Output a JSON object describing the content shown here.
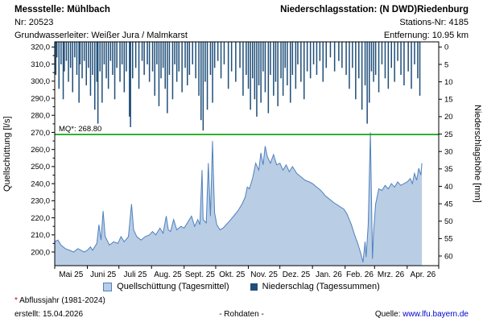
{
  "header": {
    "left": {
      "title": "Messstelle: Mühlbach",
      "nr": "Nr: 20523",
      "aquifer": "Grundwasserleiter: Weißer Jura / Malmkarst"
    },
    "right": {
      "title": "Niederschlagsstation: (N DWD)Riedenburg",
      "station_nr": "Stations-Nr: 4185",
      "distance": "Entfernung: 10.95 km"
    }
  },
  "legend": {
    "discharge": "Quellschüttung (Tagesmittel)",
    "precip": "Niederschlag (Tagessummen)"
  },
  "footer": {
    "star": "*",
    "star_color": "#CC0000",
    "note": " Abflussjahr (1981-2024)",
    "created": "erstellt:  15.04.2026",
    "center": "- Rohdaten -",
    "source_label": "Quelle: ",
    "source_link": "www.lfu.bayern.de",
    "link_color": "#0000CC"
  },
  "chart_data": {
    "type": "combo",
    "x_domain_days": 365,
    "x_month_start_days": [
      0,
      31,
      61,
      92,
      123,
      153,
      184,
      214,
      245,
      276,
      304,
      335
    ],
    "x_categories": [
      "Mai 25",
      "Juni 25",
      "Juli 25",
      "Aug. 25",
      "Sept. 25",
      "Okt. 25",
      "Nov. 25",
      "Dez. 25",
      "Jan. 26",
      "Feb. 26",
      "Mrz. 26",
      "Apr. 26"
    ],
    "left_axis": {
      "label": "Quellschüttung [l/s]",
      "min": 192,
      "max": 323,
      "ticks": [
        200,
        210,
        220,
        230,
        240,
        250,
        260,
        270,
        280,
        290,
        300,
        310,
        320
      ],
      "tick_labels": [
        "200,0",
        "210,0",
        "220,0",
        "230,0",
        "240,0",
        "250,0",
        "260,0",
        "270,0",
        "280,0",
        "290,0",
        "300,0",
        "310,0",
        "320,0"
      ]
    },
    "right_axis": {
      "label": "Niederschlagshöhe [mm]",
      "min": 0,
      "max": 60,
      "inverted": true,
      "ticks": [
        0,
        5,
        10,
        15,
        20,
        25,
        30,
        35,
        40,
        45,
        50,
        55,
        60
      ],
      "tick_labels": [
        "0",
        "5",
        "10",
        "15",
        "20",
        "25",
        "30",
        "35",
        "40",
        "45",
        "50",
        "55",
        "60"
      ]
    },
    "reference_line": {
      "label": "MQ*: 268.80",
      "value": 268.8
    },
    "colors": {
      "area_fill": "#B9CDE5",
      "area_stroke": "#4F81BD",
      "bar": "#1F4E79",
      "mq": "#00A000",
      "frame": "#000000"
    },
    "series": [
      {
        "name": "Quellschüttung (Tagesmittel)",
        "type": "area",
        "axis": "left",
        "unit": "l/s",
        "points": [
          [
            0,
            206
          ],
          [
            3,
            207
          ],
          [
            6,
            204
          ],
          [
            10,
            202
          ],
          [
            14,
            201
          ],
          [
            18,
            200
          ],
          [
            22,
            202
          ],
          [
            25,
            201
          ],
          [
            28,
            200
          ],
          [
            31,
            201
          ],
          [
            34,
            203
          ],
          [
            36,
            201
          ],
          [
            40,
            205
          ],
          [
            42,
            216
          ],
          [
            44,
            207
          ],
          [
            46,
            224
          ],
          [
            48,
            209
          ],
          [
            52,
            204
          ],
          [
            56,
            206
          ],
          [
            60,
            205
          ],
          [
            63,
            209
          ],
          [
            66,
            206
          ],
          [
            70,
            209
          ],
          [
            73,
            228
          ],
          [
            75,
            213
          ],
          [
            78,
            209
          ],
          [
            82,
            207
          ],
          [
            86,
            209
          ],
          [
            90,
            210
          ],
          [
            93,
            212
          ],
          [
            96,
            210
          ],
          [
            100,
            214
          ],
          [
            103,
            211
          ],
          [
            106,
            221
          ],
          [
            108,
            213
          ],
          [
            110,
            212
          ],
          [
            113,
            219
          ],
          [
            116,
            213
          ],
          [
            120,
            215
          ],
          [
            123,
            214
          ],
          [
            126,
            217
          ],
          [
            130,
            221
          ],
          [
            133,
            215
          ],
          [
            136,
            219
          ],
          [
            138,
            216
          ],
          [
            140,
            248
          ],
          [
            141,
            219
          ],
          [
            144,
            217
          ],
          [
            146,
            252
          ],
          [
            148,
            221
          ],
          [
            150,
            265
          ],
          [
            151,
            242
          ],
          [
            152,
            223
          ],
          [
            154,
            216
          ],
          [
            157,
            213
          ],
          [
            160,
            214
          ],
          [
            163,
            216
          ],
          [
            166,
            218
          ],
          [
            170,
            221
          ],
          [
            174,
            224
          ],
          [
            178,
            228
          ],
          [
            181,
            232
          ],
          [
            183,
            238
          ],
          [
            185,
            237
          ],
          [
            188,
            243
          ],
          [
            191,
            252
          ],
          [
            194,
            248
          ],
          [
            196,
            258
          ],
          [
            198,
            251
          ],
          [
            200,
            262
          ],
          [
            202,
            256
          ],
          [
            205,
            252
          ],
          [
            208,
            257
          ],
          [
            211,
            251
          ],
          [
            214,
            252
          ],
          [
            217,
            248
          ],
          [
            220,
            251
          ],
          [
            223,
            247
          ],
          [
            226,
            250
          ],
          [
            230,
            246
          ],
          [
            234,
            244
          ],
          [
            238,
            242
          ],
          [
            242,
            241
          ],
          [
            245,
            240
          ],
          [
            249,
            238
          ],
          [
            253,
            236
          ],
          [
            257,
            233
          ],
          [
            261,
            231
          ],
          [
            265,
            229
          ],
          [
            270,
            227
          ],
          [
            275,
            225
          ],
          [
            278,
            222
          ],
          [
            282,
            216
          ],
          [
            285,
            210
          ],
          [
            288,
            205
          ],
          [
            291,
            199
          ],
          [
            293,
            194
          ],
          [
            295,
            206
          ],
          [
            296,
            197
          ],
          [
            298,
            216
          ],
          [
            300,
            270
          ],
          [
            301,
            233
          ],
          [
            302,
            196
          ],
          [
            303,
            211
          ],
          [
            305,
            228
          ],
          [
            308,
            237
          ],
          [
            311,
            236
          ],
          [
            314,
            239
          ],
          [
            317,
            237
          ],
          [
            320,
            240
          ],
          [
            323,
            238
          ],
          [
            326,
            241
          ],
          [
            329,
            239
          ],
          [
            332,
            240
          ],
          [
            335,
            241
          ],
          [
            338,
            243
          ],
          [
            340,
            240
          ],
          [
            342,
            246
          ],
          [
            344,
            242
          ],
          [
            346,
            249
          ],
          [
            348,
            245
          ],
          [
            349,
            252
          ]
        ]
      },
      {
        "name": "Niederschlag (Tagessummen)",
        "type": "bar",
        "axis": "right",
        "unit": "mm",
        "points": [
          [
            1,
            8
          ],
          [
            2,
            3
          ],
          [
            4,
            12
          ],
          [
            6,
            5
          ],
          [
            8,
            15
          ],
          [
            9,
            7
          ],
          [
            11,
            4
          ],
          [
            13,
            10
          ],
          [
            15,
            6
          ],
          [
            17,
            13
          ],
          [
            19,
            3
          ],
          [
            21,
            8
          ],
          [
            23,
            16
          ],
          [
            24,
            5
          ],
          [
            26,
            9
          ],
          [
            28,
            4
          ],
          [
            30,
            11
          ],
          [
            32,
            6
          ],
          [
            34,
            14
          ],
          [
            36,
            8
          ],
          [
            38,
            18
          ],
          [
            40,
            10
          ],
          [
            41,
            22
          ],
          [
            43,
            7
          ],
          [
            45,
            16
          ],
          [
            47,
            5
          ],
          [
            49,
            9
          ],
          [
            51,
            12
          ],
          [
            53,
            4
          ],
          [
            55,
            8
          ],
          [
            57,
            15
          ],
          [
            59,
            6
          ],
          [
            62,
            10
          ],
          [
            64,
            5
          ],
          [
            66,
            13
          ],
          [
            68,
            7
          ],
          [
            71,
            20
          ],
          [
            72,
            23
          ],
          [
            74,
            9
          ],
          [
            77,
            6
          ],
          [
            80,
            12
          ],
          [
            83,
            4
          ],
          [
            85,
            8
          ],
          [
            88,
            5
          ],
          [
            90,
            10
          ],
          [
            93,
            7
          ],
          [
            95,
            14
          ],
          [
            97,
            5
          ],
          [
            99,
            17
          ],
          [
            101,
            9
          ],
          [
            103,
            6
          ],
          [
            105,
            12
          ],
          [
            107,
            19
          ],
          [
            109,
            8
          ],
          [
            112,
            15
          ],
          [
            114,
            5
          ],
          [
            116,
            10
          ],
          [
            118,
            7
          ],
          [
            121,
            13
          ],
          [
            124,
            6
          ],
          [
            126,
            11
          ],
          [
            128,
            8
          ],
          [
            131,
            5
          ],
          [
            134,
            9
          ],
          [
            137,
            14
          ],
          [
            139,
            21
          ],
          [
            141,
            24
          ],
          [
            143,
            10
          ],
          [
            145,
            18
          ],
          [
            148,
            8
          ],
          [
            150,
            16
          ],
          [
            152,
            6
          ],
          [
            155,
            4
          ],
          [
            158,
            9
          ],
          [
            161,
            5
          ],
          [
            165,
            12
          ],
          [
            168,
            7
          ],
          [
            172,
            10
          ],
          [
            176,
            6
          ],
          [
            179,
            14
          ],
          [
            182,
            8
          ],
          [
            184,
            12
          ],
          [
            186,
            18
          ],
          [
            188,
            9
          ],
          [
            190,
            15
          ],
          [
            192,
            20
          ],
          [
            194,
            11
          ],
          [
            196,
            16
          ],
          [
            198,
            7
          ],
          [
            200,
            13
          ],
          [
            203,
            19
          ],
          [
            205,
            8
          ],
          [
            208,
            14
          ],
          [
            210,
            10
          ],
          [
            212,
            17
          ],
          [
            215,
            9
          ],
          [
            217,
            14
          ],
          [
            219,
            6
          ],
          [
            221,
            11
          ],
          [
            224,
            16
          ],
          [
            226,
            8
          ],
          [
            229,
            12
          ],
          [
            231,
            5
          ],
          [
            234,
            10
          ],
          [
            237,
            15
          ],
          [
            240,
            7
          ],
          [
            243,
            9
          ],
          [
            246,
            5
          ],
          [
            249,
            8
          ],
          [
            252,
            4
          ],
          [
            255,
            10
          ],
          [
            258,
            6
          ],
          [
            262,
            3
          ],
          [
            266,
            7
          ],
          [
            270,
            4
          ],
          [
            273,
            6
          ],
          [
            277,
            8
          ],
          [
            280,
            12
          ],
          [
            283,
            6
          ],
          [
            286,
            15
          ],
          [
            289,
            9
          ],
          [
            292,
            18
          ],
          [
            295,
            11
          ],
          [
            297,
            22
          ],
          [
            299,
            16
          ],
          [
            301,
            7
          ],
          [
            303,
            10
          ],
          [
            305,
            8
          ],
          [
            308,
            13
          ],
          [
            311,
            5
          ],
          [
            314,
            9
          ],
          [
            317,
            12
          ],
          [
            320,
            6
          ],
          [
            323,
            10
          ],
          [
            326,
            4
          ],
          [
            329,
            8
          ],
          [
            332,
            11
          ],
          [
            336,
            7
          ],
          [
            339,
            12
          ],
          [
            342,
            5
          ],
          [
            345,
            9
          ],
          [
            347,
            14
          ]
        ]
      }
    ]
  }
}
